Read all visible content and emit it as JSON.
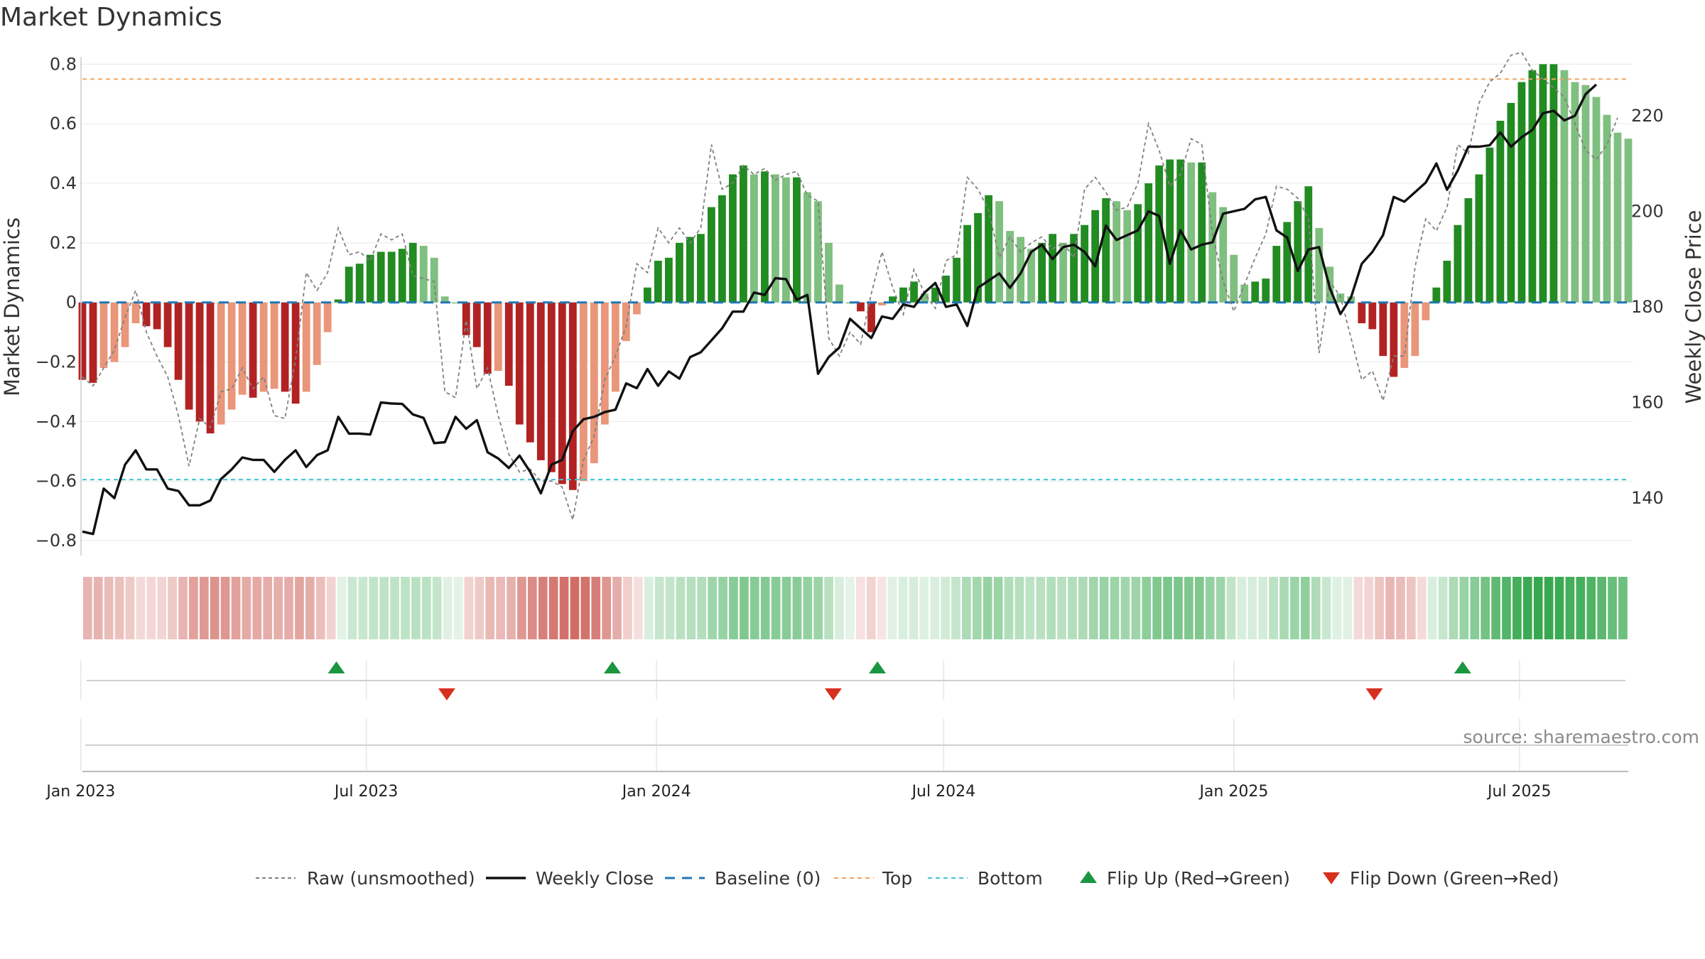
{
  "title": "Market Dynamics",
  "source": "source: sharemaestro.com",
  "chart_data": {
    "type": "bar",
    "title": "Market Dynamics",
    "ylabel_left": "Market Dynamics",
    "ylabel_right": "Weekly Close Price",
    "ylim_left": [
      -0.85,
      0.82
    ],
    "ylim_right": [
      128,
      232
    ],
    "yticks_left": [
      "0.8",
      "0.6",
      "0.4",
      "0.2",
      "0",
      "−0.2",
      "−0.4",
      "−0.6",
      "−0.8"
    ],
    "yticks_left_values": [
      0.8,
      0.6,
      0.4,
      0.2,
      0,
      -0.2,
      -0.4,
      -0.6,
      -0.8
    ],
    "yticks_right": [
      "220",
      "200",
      "180",
      "160",
      "140"
    ],
    "yticks_right_values": [
      220,
      200,
      180,
      160,
      140
    ],
    "x_start": "2023-01-02",
    "x_end": "2025-09-08",
    "x_ticks": [
      {
        "date": "2023-01-01",
        "label": "Jan 2023"
      },
      {
        "date": "2023-07-01",
        "label": "Jul 2023"
      },
      {
        "date": "2024-01-01",
        "label": "Jan 2024"
      },
      {
        "date": "2024-07-01",
        "label": "Jul 2024"
      },
      {
        "date": "2025-01-01",
        "label": "Jan 2025"
      },
      {
        "date": "2025-07-01",
        "label": "Jul 2025"
      }
    ],
    "top_line": 0.75,
    "bottom_line": -0.595,
    "baseline": 0,
    "legend_position": "bottom",
    "colors": {
      "strong_red": "#b22222",
      "light_red": "#e9967a",
      "strong_green": "#228b22",
      "light_green": "#7fbf7f",
      "top": "#f4a460",
      "bottom": "#40c4d8",
      "baseline": "#1f77b4",
      "raw": "#808080",
      "close": "#111111",
      "flip_up": "#1a9641",
      "flip_down": "#d7301f"
    },
    "series": [
      {
        "name": "Market Dynamics",
        "values": [
          -0.26,
          -0.27,
          -0.22,
          -0.2,
          -0.15,
          -0.07,
          -0.08,
          -0.09,
          -0.15,
          -0.26,
          -0.36,
          -0.4,
          -0.44,
          -0.41,
          -0.36,
          -0.31,
          -0.32,
          -0.3,
          -0.29,
          -0.3,
          -0.34,
          -0.3,
          -0.21,
          -0.1,
          0.01,
          0.12,
          0.13,
          0.16,
          0.17,
          0.17,
          0.18,
          0.2,
          0.19,
          0.15,
          0.02,
          0.0,
          -0.11,
          -0.15,
          -0.24,
          -0.23,
          -0.28,
          -0.41,
          -0.47,
          -0.53,
          -0.57,
          -0.61,
          -0.63,
          -0.6,
          -0.54,
          -0.41,
          -0.3,
          -0.13,
          -0.04,
          0.05,
          0.14,
          0.15,
          0.2,
          0.22,
          0.23,
          0.32,
          0.36,
          0.43,
          0.46,
          0.43,
          0.44,
          0.43,
          0.42,
          0.42,
          0.37,
          0.34,
          0.2,
          0.06,
          0.0,
          -0.03,
          -0.1,
          -0.01,
          0.02,
          0.05,
          0.07,
          0.03,
          0.05,
          0.09,
          0.15,
          0.26,
          0.3,
          0.36,
          0.34,
          0.24,
          0.22,
          0.18,
          0.2,
          0.23,
          0.2,
          0.23,
          0.26,
          0.31,
          0.35,
          0.34,
          0.31,
          0.33,
          0.4,
          0.46,
          0.48,
          0.48,
          0.47,
          0.47,
          0.37,
          0.32,
          0.16,
          0.06,
          0.07,
          0.08,
          0.19,
          0.27,
          0.34,
          0.39,
          0.25,
          0.12,
          0.03,
          0.02,
          -0.07,
          -0.09,
          -0.18,
          -0.25,
          -0.22,
          -0.18,
          -0.06,
          0.05,
          0.14,
          0.26,
          0.35,
          0.43,
          0.52,
          0.61,
          0.67,
          0.74,
          0.78,
          0.8,
          0.8,
          0.78,
          0.74,
          0.73,
          0.69,
          0.63,
          0.57,
          0.55
        ]
      },
      {
        "name": "Raw (unsmoothed)",
        "values": [
          -0.25,
          -0.28,
          -0.22,
          -0.16,
          -0.05,
          0.04,
          -0.1,
          -0.18,
          -0.25,
          -0.38,
          -0.55,
          -0.39,
          -0.42,
          -0.3,
          -0.29,
          -0.22,
          -0.29,
          -0.25,
          -0.38,
          -0.39,
          -0.19,
          0.1,
          0.04,
          0.1,
          0.25,
          0.16,
          0.17,
          0.14,
          0.23,
          0.21,
          0.23,
          0.09,
          0.08,
          0.07,
          -0.3,
          -0.32,
          -0.06,
          -0.29,
          -0.22,
          -0.38,
          -0.51,
          -0.57,
          -0.56,
          -0.6,
          -0.6,
          -0.62,
          -0.73,
          -0.53,
          -0.45,
          -0.26,
          -0.18,
          -0.08,
          0.13,
          0.1,
          0.25,
          0.2,
          0.25,
          0.2,
          0.25,
          0.53,
          0.38,
          0.4,
          0.46,
          0.43,
          0.45,
          0.41,
          0.43,
          0.44,
          0.36,
          0.34,
          -0.12,
          -0.18,
          -0.1,
          -0.14,
          0.03,
          0.17,
          0.05,
          -0.04,
          0.11,
          0.03,
          -0.02,
          0.14,
          0.16,
          0.42,
          0.38,
          0.31,
          0.15,
          0.22,
          0.17,
          0.2,
          0.22,
          0.18,
          0.2,
          0.15,
          0.38,
          0.42,
          0.37,
          0.31,
          0.32,
          0.4,
          0.6,
          0.51,
          0.39,
          0.43,
          0.55,
          0.53,
          0.23,
          0.07,
          -0.03,
          0.06,
          0.15,
          0.23,
          0.39,
          0.38,
          0.35,
          0.28,
          -0.17,
          0.07,
          0.02,
          -0.12,
          -0.26,
          -0.23,
          -0.33,
          -0.18,
          -0.18,
          0.12,
          0.28,
          0.24,
          0.32,
          0.53,
          0.5,
          0.67,
          0.74,
          0.77,
          0.83,
          0.84,
          0.78,
          0.75,
          0.72,
          0.69,
          0.6,
          0.51,
          0.48,
          0.53,
          0.62
        ]
      },
      {
        "name": "Weekly Close",
        "values": [
          133,
          132.5,
          142,
          140,
          147,
          150,
          146,
          146,
          142,
          141.5,
          138.5,
          138.5,
          139.5,
          144,
          146,
          148.5,
          148,
          148,
          145.5,
          148,
          150,
          146.5,
          149,
          150,
          157,
          153.5,
          153.5,
          153.3,
          160,
          159.8,
          159.7,
          157.5,
          156.8,
          151.5,
          151.7,
          157,
          154.5,
          156.3,
          149.6,
          148.3,
          146.3,
          148.9,
          145.5,
          141,
          147,
          148,
          154,
          156.5,
          157,
          158,
          158.5,
          164,
          163,
          167,
          163.5,
          166.5,
          165,
          169.5,
          170.5,
          173,
          175.5,
          179,
          179,
          183,
          182.5,
          186,
          185.8,
          181.5,
          182.5,
          166,
          169.5,
          171.5,
          177.5,
          175.5,
          173.5,
          178,
          177.5,
          180.5,
          180,
          183,
          185,
          180,
          180.5,
          176,
          184,
          185.5,
          187,
          184,
          187,
          191.5,
          193,
          190,
          192.5,
          193,
          191.5,
          188.5,
          197,
          194,
          195,
          196,
          200,
          199,
          189,
          196,
          192,
          193,
          193.5,
          199.5,
          200,
          200.5,
          202.5,
          203,
          196,
          194.5,
          187.5,
          192,
          192.5,
          184,
          178.5,
          182,
          189,
          191.5,
          195,
          203,
          202,
          204,
          206,
          210,
          204.5,
          208.5,
          213.5,
          213.5,
          213.8,
          216.5,
          213.5,
          215.5,
          217,
          220.5,
          221,
          219,
          220,
          224.5,
          226.5
        ]
      }
    ],
    "flips_up": [
      "2023-06-12",
      "2023-12-04",
      "2024-05-20",
      "2025-05-26"
    ],
    "flips_down": [
      "2023-08-21",
      "2024-04-22",
      "2025-03-31"
    ],
    "legend": [
      {
        "key": "raw",
        "label": "Raw (unsmoothed)"
      },
      {
        "key": "close",
        "label": "Weekly Close"
      },
      {
        "key": "baseline",
        "label": "Baseline (0)"
      },
      {
        "key": "top",
        "label": "Top"
      },
      {
        "key": "bottom",
        "label": "Bottom"
      },
      {
        "key": "flip_up",
        "label": "Flip Up (Red→Green)"
      },
      {
        "key": "flip_down",
        "label": "Flip Down (Green→Red)"
      }
    ]
  }
}
